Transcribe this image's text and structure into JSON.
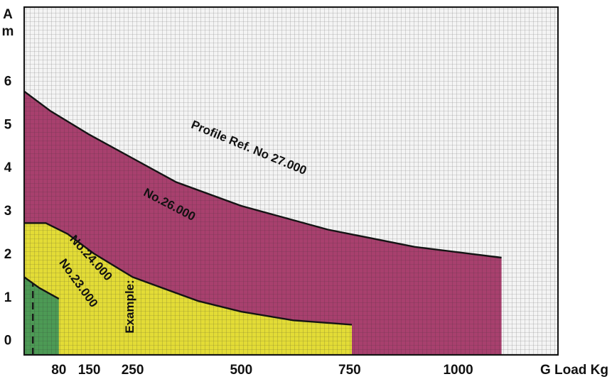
{
  "chart_data": {
    "type": "area",
    "title": "",
    "y_axis_label": [
      "A",
      "m"
    ],
    "x_axis_label": "G Load Kg",
    "x_ticks": [
      80,
      150,
      250,
      500,
      750,
      1000
    ],
    "y_ticks": [
      0,
      1,
      2,
      3,
      4,
      5,
      6
    ],
    "xlim": [
      0,
      1230
    ],
    "ylim": [
      -0.35,
      7.7
    ],
    "grid": true,
    "annotations": [
      {
        "text": "Profile Ref. No 27.000"
      },
      {
        "text": "No.26.000"
      },
      {
        "text": "No.24.000"
      },
      {
        "text": "No.23.000"
      },
      {
        "text": "Example:"
      }
    ],
    "series": [
      {
        "name": "No.26.000",
        "color": "#a8406e",
        "boundary": [
          {
            "x": 0,
            "y": 5.75
          },
          {
            "x": 60,
            "y": 5.3
          },
          {
            "x": 150,
            "y": 4.75
          },
          {
            "x": 250,
            "y": 4.2
          },
          {
            "x": 350,
            "y": 3.65
          },
          {
            "x": 500,
            "y": 3.1
          },
          {
            "x": 700,
            "y": 2.55
          },
          {
            "x": 900,
            "y": 2.15
          },
          {
            "x": 1100,
            "y": 1.9
          },
          {
            "x": 1100,
            "y": -0.35
          }
        ]
      },
      {
        "name": "No.24.000",
        "color": "#e3dc36",
        "boundary": [
          {
            "x": 0,
            "y": 2.7
          },
          {
            "x": 50,
            "y": 2.7
          },
          {
            "x": 100,
            "y": 2.45
          },
          {
            "x": 160,
            "y": 2.0
          },
          {
            "x": 250,
            "y": 1.45
          },
          {
            "x": 400,
            "y": 0.9
          },
          {
            "x": 500,
            "y": 0.65
          },
          {
            "x": 620,
            "y": 0.45
          },
          {
            "x": 755,
            "y": 0.35
          },
          {
            "x": 755,
            "y": -0.35
          }
        ]
      },
      {
        "name": "No.23.000",
        "color": "#4d9a55",
        "boundary": [
          {
            "x": 0,
            "y": 1.45
          },
          {
            "x": 35,
            "y": 1.2
          },
          {
            "x": 80,
            "y": 0.95
          },
          {
            "x": 80,
            "y": -0.35
          }
        ]
      }
    ],
    "example": {
      "label": "Example:",
      "x": 20
    }
  }
}
